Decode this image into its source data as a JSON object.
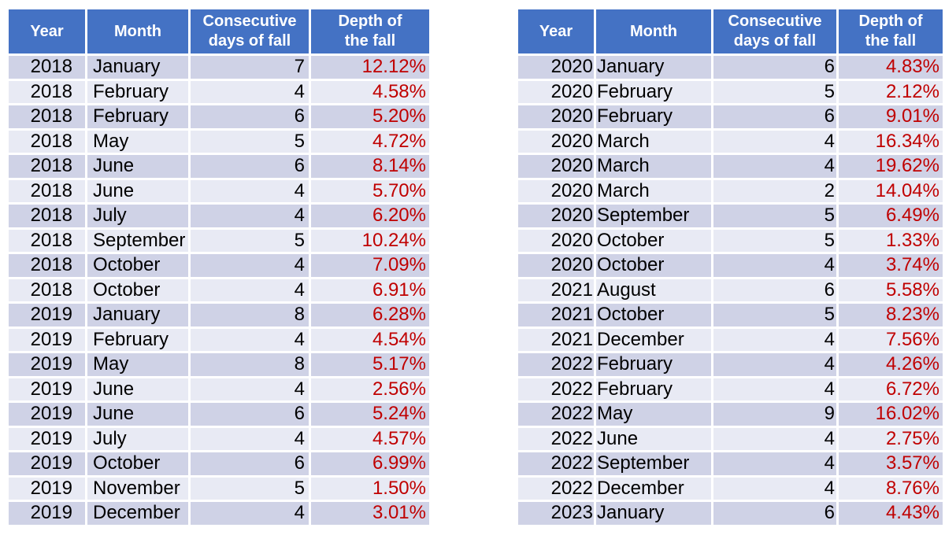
{
  "colors": {
    "header_bg": "#4472C4",
    "header_text": "#FFFFFF",
    "row_band_dark": "#CFD2E6",
    "row_band_light": "#E8EAF4",
    "separator": "#FFFFFF",
    "value_red": "#C00000",
    "body_text": "#000000",
    "page_bg": "#FFFFFF"
  },
  "chart_data": [
    {
      "type": "table",
      "position": "left",
      "columns": [
        "Year",
        "Month",
        "Consecutive days of fall",
        "Depth of the fall"
      ],
      "rows": [
        [
          "2018",
          "January",
          "7",
          "12.12%"
        ],
        [
          "2018",
          "February",
          "4",
          "4.58%"
        ],
        [
          "2018",
          "February",
          "6",
          "5.20%"
        ],
        [
          "2018",
          "May",
          "5",
          "4.72%"
        ],
        [
          "2018",
          "June",
          "6",
          "8.14%"
        ],
        [
          "2018",
          "June",
          "4",
          "5.70%"
        ],
        [
          "2018",
          "July",
          "4",
          "6.20%"
        ],
        [
          "2018",
          "September",
          "5",
          "10.24%"
        ],
        [
          "2018",
          "October",
          "4",
          "7.09%"
        ],
        [
          "2018",
          "October",
          "4",
          "6.91%"
        ],
        [
          "2019",
          "January",
          "8",
          "6.28%"
        ],
        [
          "2019",
          "February",
          "4",
          "4.54%"
        ],
        [
          "2019",
          "May",
          "8",
          "5.17%"
        ],
        [
          "2019",
          "June",
          "4",
          "2.56%"
        ],
        [
          "2019",
          "June",
          "6",
          "5.24%"
        ],
        [
          "2019",
          "July",
          "4",
          "4.57%"
        ],
        [
          "2019",
          "October",
          "6",
          "6.99%"
        ],
        [
          "2019",
          "November",
          "5",
          "1.50%"
        ],
        [
          "2019",
          "December",
          "4",
          "3.01%"
        ]
      ]
    },
    {
      "type": "table",
      "position": "right",
      "columns": [
        "Year",
        "Month",
        "Consecutive days of fall",
        "Depth of the fall"
      ],
      "rows": [
        [
          "2020",
          "January",
          "6",
          "4.83%"
        ],
        [
          "2020",
          "February",
          "5",
          "2.12%"
        ],
        [
          "2020",
          "February",
          "6",
          "9.01%"
        ],
        [
          "2020",
          "March",
          "4",
          "16.34%"
        ],
        [
          "2020",
          "March",
          "4",
          "19.62%"
        ],
        [
          "2020",
          "March",
          "2",
          "14.04%"
        ],
        [
          "2020",
          "September",
          "5",
          "6.49%"
        ],
        [
          "2020",
          "October",
          "5",
          "1.33%"
        ],
        [
          "2020",
          "October",
          "4",
          "3.74%"
        ],
        [
          "2021",
          "August",
          "6",
          "5.58%"
        ],
        [
          "2021",
          "October",
          "5",
          "8.23%"
        ],
        [
          "2021",
          "December",
          "4",
          "7.56%"
        ],
        [
          "2022",
          "February",
          "4",
          "4.26%"
        ],
        [
          "2022",
          "February",
          "4",
          "6.72%"
        ],
        [
          "2022",
          "May",
          "9",
          "16.02%"
        ],
        [
          "2022",
          "June",
          "4",
          "2.75%"
        ],
        [
          "2022",
          "September",
          "4",
          "3.57%"
        ],
        [
          "2022",
          "December",
          "4",
          "8.76%"
        ],
        [
          "2023",
          "January",
          "6",
          "4.43%"
        ]
      ]
    }
  ]
}
